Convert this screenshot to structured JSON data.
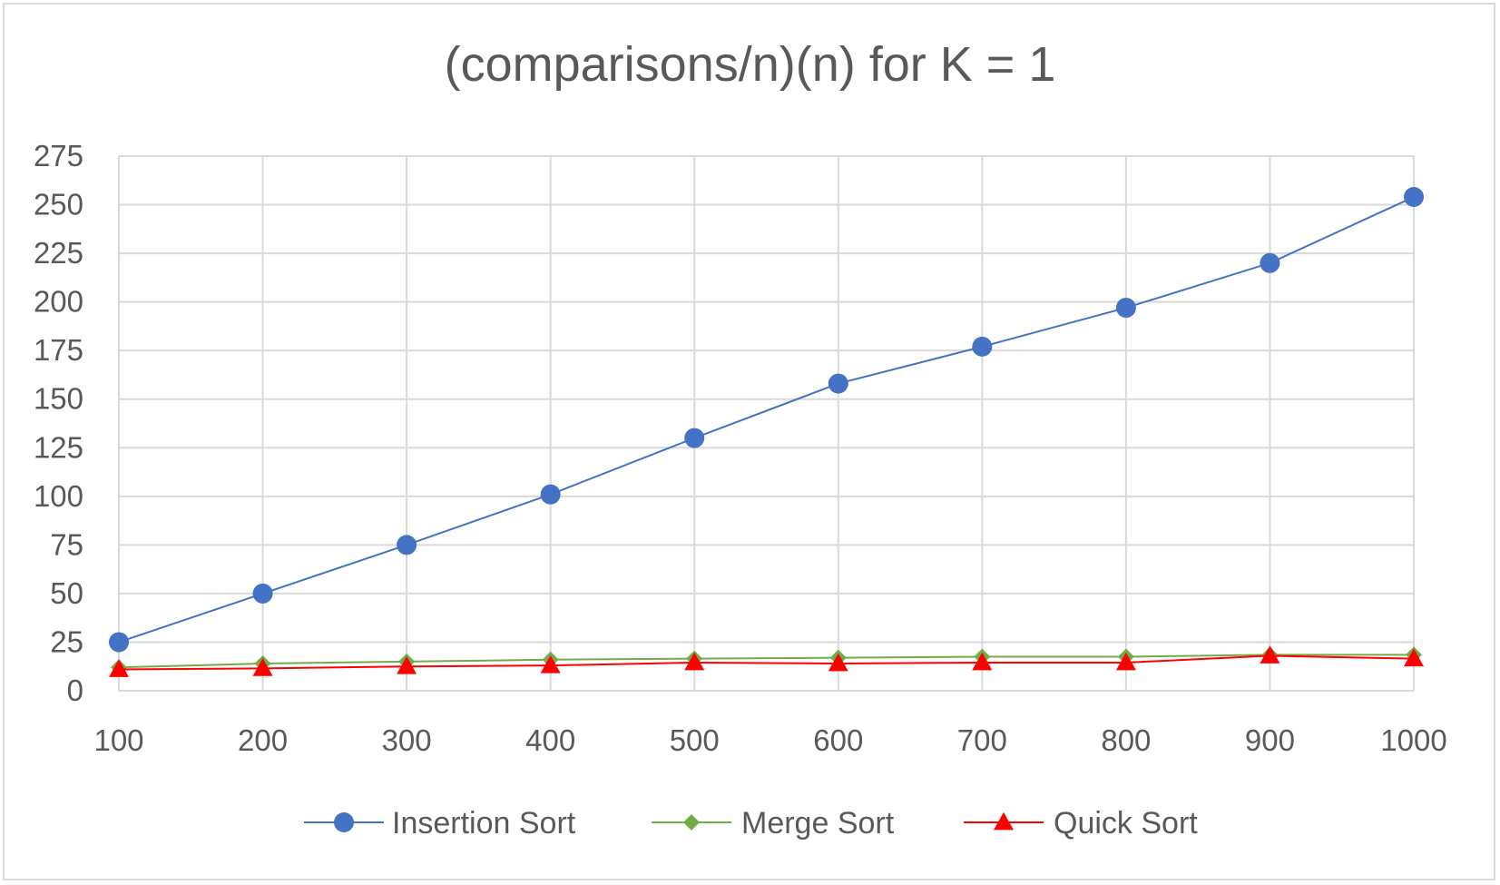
{
  "chart_data": {
    "type": "line",
    "title": "(comparisons/n)(n) for K = 1",
    "xlabel": "",
    "ylabel": "",
    "categories": [
      "100",
      "200",
      "300",
      "400",
      "500",
      "600",
      "700",
      "800",
      "900",
      "1000"
    ],
    "ylim": [
      0,
      275
    ],
    "yticks": [
      "0",
      "25",
      "50",
      "75",
      "100",
      "125",
      "150",
      "175",
      "200",
      "225",
      "250",
      "275"
    ],
    "grid": true,
    "legend_position": "bottom",
    "series": [
      {
        "name": "Insertion Sort",
        "color": "#4472c4",
        "marker": "circle",
        "values": [
          25,
          50,
          75,
          101,
          130,
          158,
          177,
          197,
          220,
          254
        ]
      },
      {
        "name": "Merge Sort",
        "color": "#70ad47",
        "marker": "diamond",
        "values": [
          12,
          14,
          15,
          16,
          16.5,
          17,
          17.5,
          17.5,
          18.5,
          18.5
        ]
      },
      {
        "name": "Quick Sort",
        "color": "#ff0000",
        "marker": "triangle",
        "values": [
          11,
          11.5,
          12.5,
          13,
          14.5,
          14,
          14.5,
          14.5,
          18,
          16.5
        ]
      }
    ]
  }
}
